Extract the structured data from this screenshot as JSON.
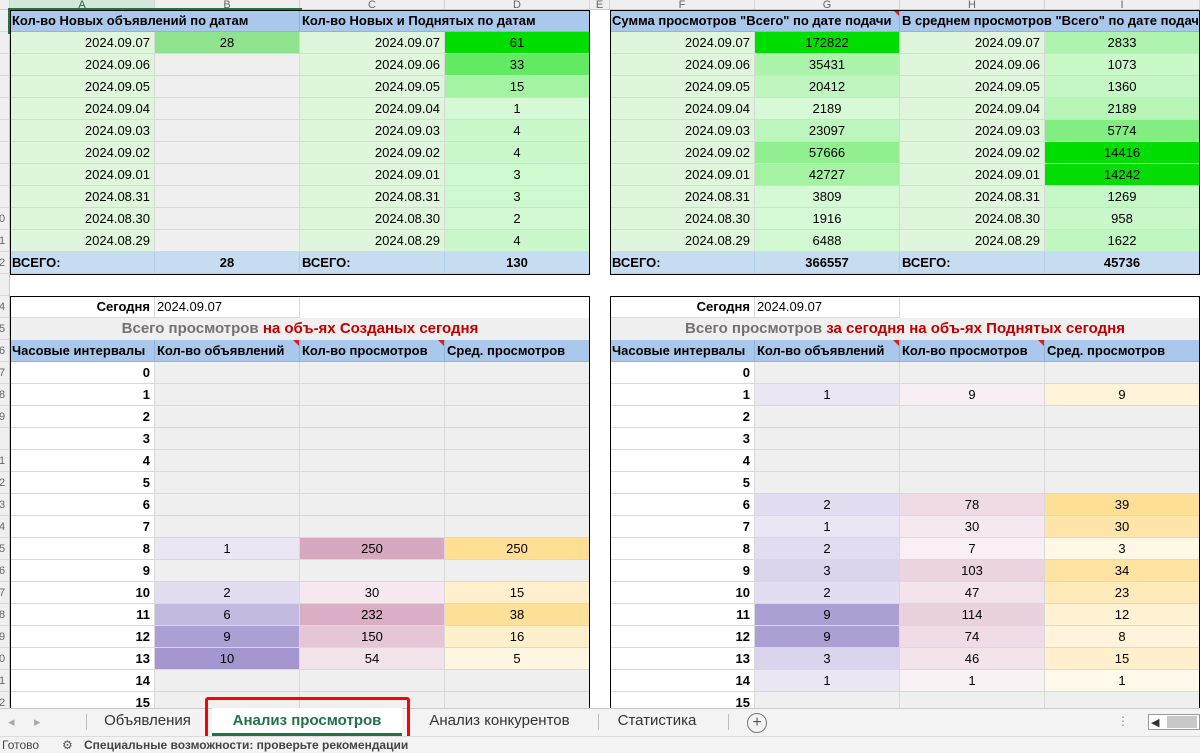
{
  "columns": [
    "A",
    "B",
    "C",
    "D",
    "E",
    "F",
    "G",
    "H",
    "I"
  ],
  "colors": {
    "header_blue": "#a9c8eb",
    "total_blue": "#c5dcf1",
    "light_green": "#dff5dc",
    "light_gray": "#efefef",
    "title_red": "#c00000",
    "title_gray": "#767171",
    "tab_active_green": "#217346",
    "highlight_red": "#ff0000"
  },
  "top_left": {
    "h1": "Кол-во Новых объявлений по датам",
    "h2": "Кол-во Новых и Поднятых по датам",
    "rows": [
      {
        "date": "2024.09.07",
        "new": "28",
        "date2": "2024.09.07",
        "raised": "61"
      },
      {
        "date": "2024.09.06",
        "new": "",
        "date2": "2024.09.06",
        "raised": "33"
      },
      {
        "date": "2024.09.05",
        "new": "",
        "date2": "2024.09.05",
        "raised": "15"
      },
      {
        "date": "2024.09.04",
        "new": "",
        "date2": "2024.09.04",
        "raised": "1"
      },
      {
        "date": "2024.09.03",
        "new": "",
        "date2": "2024.09.03",
        "raised": "4"
      },
      {
        "date": "2024.09.02",
        "new": "",
        "date2": "2024.09.02",
        "raised": "4"
      },
      {
        "date": "2024.09.01",
        "new": "",
        "date2": "2024.09.01",
        "raised": "3"
      },
      {
        "date": "2024.08.31",
        "new": "",
        "date2": "2024.08.31",
        "raised": "3"
      },
      {
        "date": "2024.08.30",
        "new": "",
        "date2": "2024.08.30",
        "raised": "2"
      },
      {
        "date": "2024.08.29",
        "new": "",
        "date2": "2024.08.29",
        "raised": "4"
      }
    ],
    "total_label": "ВСЕГО:",
    "total_new": "28",
    "total_label2": "ВСЕГО:",
    "total_raised": "130"
  },
  "top_right": {
    "h1": "Сумма просмотров \"Всего\" по дате подачи",
    "h2": "В среднем просмотров \"Всего\" по дате подачи",
    "rows": [
      {
        "date": "2024.09.07",
        "sum": "172822",
        "date2": "2024.09.07",
        "avg": "2833"
      },
      {
        "date": "2024.09.06",
        "sum": "35431",
        "date2": "2024.09.06",
        "avg": "1073"
      },
      {
        "date": "2024.09.05",
        "sum": "20412",
        "date2": "2024.09.05",
        "avg": "1360"
      },
      {
        "date": "2024.09.04",
        "sum": "2189",
        "date2": "2024.09.04",
        "avg": "2189"
      },
      {
        "date": "2024.09.03",
        "sum": "23097",
        "date2": "2024.09.03",
        "avg": "5774"
      },
      {
        "date": "2024.09.02",
        "sum": "57666",
        "date2": "2024.09.02",
        "avg": "14416"
      },
      {
        "date": "2024.09.01",
        "sum": "42727",
        "date2": "2024.09.01",
        "avg": "14242"
      },
      {
        "date": "2024.08.31",
        "sum": "3809",
        "date2": "2024.08.31",
        "avg": "1269"
      },
      {
        "date": "2024.08.30",
        "sum": "1916",
        "date2": "2024.08.30",
        "avg": "958"
      },
      {
        "date": "2024.08.29",
        "sum": "6488",
        "date2": "2024.08.29",
        "avg": "1622"
      }
    ],
    "total_label": "ВСЕГО:",
    "total_sum": "366557",
    "total_label2": "ВСЕГО:",
    "total_avg": "45736"
  },
  "bottom_left": {
    "today_label": "Сегодня",
    "today_date": "2024.09.07",
    "title_gray": "Всего просмотров ",
    "title_red": "на объ-ях Созданых сегодня",
    "headers": [
      "Часовые интервалы",
      "Кол-во объявлений",
      "Кол-во просмотров",
      "Сред. просмотров"
    ],
    "rows": [
      {
        "h": "0",
        "n": "",
        "v": "",
        "a": ""
      },
      {
        "h": "1",
        "n": "",
        "v": "",
        "a": ""
      },
      {
        "h": "2",
        "n": "",
        "v": "",
        "a": ""
      },
      {
        "h": "3",
        "n": "",
        "v": "",
        "a": ""
      },
      {
        "h": "4",
        "n": "",
        "v": "",
        "a": ""
      },
      {
        "h": "5",
        "n": "",
        "v": "",
        "a": ""
      },
      {
        "h": "6",
        "n": "",
        "v": "",
        "a": ""
      },
      {
        "h": "7",
        "n": "",
        "v": "",
        "a": ""
      },
      {
        "h": "8",
        "n": "1",
        "v": "250",
        "a": "250"
      },
      {
        "h": "9",
        "n": "",
        "v": "",
        "a": ""
      },
      {
        "h": "10",
        "n": "2",
        "v": "30",
        "a": "15"
      },
      {
        "h": "11",
        "n": "6",
        "v": "232",
        "a": "38"
      },
      {
        "h": "12",
        "n": "9",
        "v": "150",
        "a": "16"
      },
      {
        "h": "13",
        "n": "10",
        "v": "54",
        "a": "5"
      },
      {
        "h": "14",
        "n": "",
        "v": "",
        "a": ""
      },
      {
        "h": "15",
        "n": "",
        "v": "",
        "a": ""
      }
    ]
  },
  "bottom_right": {
    "today_label": "Сегодня",
    "today_date": "2024.09.07",
    "title_gray": "Всего просмотров ",
    "title_red": "за сегодня на объ-ях Поднятых сегодня",
    "headers": [
      "Часовые интервалы",
      "Кол-во объявлений",
      "Кол-во просмотров",
      "Сред. просмотров"
    ],
    "rows": [
      {
        "h": "0",
        "n": "",
        "v": "",
        "a": ""
      },
      {
        "h": "1",
        "n": "1",
        "v": "9",
        "a": "9"
      },
      {
        "h": "2",
        "n": "",
        "v": "",
        "a": ""
      },
      {
        "h": "3",
        "n": "",
        "v": "",
        "a": ""
      },
      {
        "h": "4",
        "n": "",
        "v": "",
        "a": ""
      },
      {
        "h": "5",
        "n": "",
        "v": "",
        "a": ""
      },
      {
        "h": "6",
        "n": "2",
        "v": "78",
        "a": "39"
      },
      {
        "h": "7",
        "n": "1",
        "v": "30",
        "a": "30"
      },
      {
        "h": "8",
        "n": "2",
        "v": "7",
        "a": "3"
      },
      {
        "h": "9",
        "n": "3",
        "v": "103",
        "a": "34"
      },
      {
        "h": "10",
        "n": "2",
        "v": "47",
        "a": "23"
      },
      {
        "h": "11",
        "n": "9",
        "v": "114",
        "a": "12"
      },
      {
        "h": "12",
        "n": "9",
        "v": "74",
        "a": "8"
      },
      {
        "h": "13",
        "n": "3",
        "v": "46",
        "a": "15"
      },
      {
        "h": "14",
        "n": "1",
        "v": "1",
        "a": "1"
      },
      {
        "h": "15",
        "n": "",
        "v": "",
        "a": ""
      }
    ]
  },
  "row_headers": [
    "",
    "",
    "",
    "",
    "",
    "",
    "",
    "",
    "",
    "0",
    "1",
    "2",
    "",
    "4",
    "5",
    "6",
    "7",
    "8",
    "9",
    "",
    "1",
    "2",
    "3",
    "4",
    "5",
    "6",
    "7",
    "8",
    "9",
    "0",
    "1",
    "2",
    "3",
    "4",
    "5"
  ],
  "tabs": [
    {
      "label": "Объявления",
      "active": false
    },
    {
      "label": "Анализ просмотров",
      "active": true
    },
    {
      "label": "Анализ конкурентов",
      "active": false
    },
    {
      "label": "Статистика",
      "active": false
    }
  ],
  "icons": {
    "add_sheet": "plus-circle-icon",
    "prev": "chevron-left-icon",
    "next": "chevron-right-icon"
  },
  "status_left": "Готово",
  "status_accessibility": "Специальные возможности: проверьте рекомендации"
}
